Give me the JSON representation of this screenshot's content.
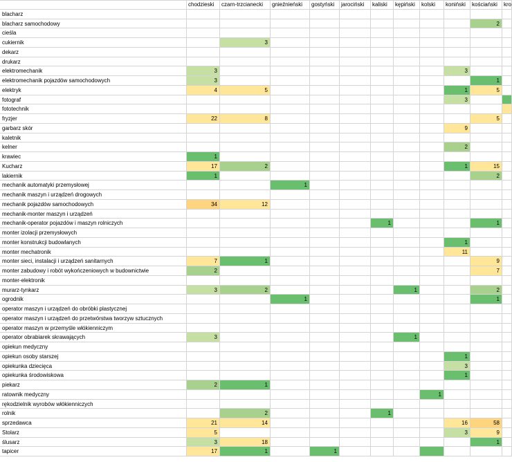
{
  "columns": [
    "chodzieski",
    "czarn-trzcianecki",
    "gnieźnieński",
    "gostyński",
    "jarociński",
    "kaliski",
    "kępiński",
    "kolski",
    "koniński",
    "kościański",
    "kro"
  ],
  "colors": {
    "yellow": "#ffe699",
    "orange": "#ffd47f",
    "light_green": "#c6e0a4",
    "mid_green": "#a9d18e",
    "green": "#6abf6e",
    "grid": "#d4d4d4"
  },
  "rows": [
    {
      "label": "blacharz",
      "cells": []
    },
    {
      "label": "blacharz samochodowy",
      "cells": [
        {
          "c": 9,
          "v": "2",
          "color": "mid_green"
        }
      ]
    },
    {
      "label": "cieśla",
      "cells": []
    },
    {
      "label": "cukiernik",
      "cells": [
        {
          "c": 1,
          "v": "3",
          "color": "light_green"
        }
      ]
    },
    {
      "label": "dekarz",
      "cells": []
    },
    {
      "label": "drukarz",
      "cells": []
    },
    {
      "label": "elektromechanik",
      "cells": [
        {
          "c": 0,
          "v": "3",
          "color": "light_green"
        },
        {
          "c": 8,
          "v": "3",
          "color": "light_green"
        }
      ]
    },
    {
      "label": "elektromechanik pojazdów samochodowych",
      "cells": [
        {
          "c": 0,
          "v": "3",
          "color": "light_green"
        },
        {
          "c": 9,
          "v": "1",
          "color": "green"
        }
      ]
    },
    {
      "label": "elektryk",
      "cells": [
        {
          "c": 0,
          "v": "4",
          "color": "yellow"
        },
        {
          "c": 1,
          "v": "5",
          "color": "yellow"
        },
        {
          "c": 8,
          "v": "1",
          "color": "green"
        },
        {
          "c": 9,
          "v": "5",
          "color": "yellow"
        }
      ]
    },
    {
      "label": "fotograf",
      "cells": [
        {
          "c": 8,
          "v": "3",
          "color": "light_green"
        },
        {
          "c": 10,
          "v": "",
          "color": "green"
        }
      ]
    },
    {
      "label": "fototechnik",
      "cells": [
        {
          "c": 10,
          "v": "",
          "color": "yellow"
        }
      ]
    },
    {
      "label": "fryzjer",
      "cells": [
        {
          "c": 0,
          "v": "22",
          "color": "yellow"
        },
        {
          "c": 1,
          "v": "8",
          "color": "yellow"
        },
        {
          "c": 9,
          "v": "5",
          "color": "yellow"
        }
      ]
    },
    {
      "label": "garbarz skór",
      "cells": [
        {
          "c": 8,
          "v": "9",
          "color": "yellow"
        }
      ]
    },
    {
      "label": "kaletnik",
      "cells": []
    },
    {
      "label": "kelner",
      "cells": [
        {
          "c": 8,
          "v": "2",
          "color": "mid_green"
        }
      ]
    },
    {
      "label": "krawiec",
      "cells": [
        {
          "c": 0,
          "v": "1",
          "color": "green"
        }
      ]
    },
    {
      "label": "Kucharz",
      "cells": [
        {
          "c": 0,
          "v": "17",
          "color": "yellow"
        },
        {
          "c": 1,
          "v": "2",
          "color": "mid_green"
        },
        {
          "c": 8,
          "v": "1",
          "color": "green"
        },
        {
          "c": 9,
          "v": "15",
          "color": "yellow"
        }
      ]
    },
    {
      "label": "lakiernik",
      "cells": [
        {
          "c": 0,
          "v": "1",
          "color": "green"
        },
        {
          "c": 9,
          "v": "2",
          "color": "mid_green"
        }
      ]
    },
    {
      "label": "mechanik automatyki przemysłowej",
      "cells": [
        {
          "c": 2,
          "v": "1",
          "color": "green"
        }
      ]
    },
    {
      "label": "mechanik maszyn i urządzeń drogowych",
      "cells": []
    },
    {
      "label": "mechanik pojazdów samochodowych",
      "cells": [
        {
          "c": 0,
          "v": "34",
          "color": "orange"
        },
        {
          "c": 1,
          "v": "12",
          "color": "yellow"
        }
      ]
    },
    {
      "label": "mechanik-monter maszyn i urządzeń",
      "cells": []
    },
    {
      "label": "mechanik-operator pojazdów i maszyn rolniczych",
      "cells": [
        {
          "c": 5,
          "v": "1",
          "color": "green"
        },
        {
          "c": 9,
          "v": "1",
          "color": "green"
        }
      ]
    },
    {
      "label": "monter izolacji przemysłowych",
      "cells": []
    },
    {
      "label": "monter konstrukcji budowlanych",
      "cells": [
        {
          "c": 8,
          "v": "1",
          "color": "green"
        }
      ]
    },
    {
      "label": "monter mechatronik",
      "cells": [
        {
          "c": 8,
          "v": "11",
          "color": "yellow"
        }
      ]
    },
    {
      "label": "monter sieci, instalacji i urządzeń sanitarnych",
      "cells": [
        {
          "c": 0,
          "v": "7",
          "color": "yellow"
        },
        {
          "c": 1,
          "v": "1",
          "color": "green"
        },
        {
          "c": 9,
          "v": "9",
          "color": "yellow"
        }
      ]
    },
    {
      "label": "monter zabudowy i robót wykończeniowych w budownictwie",
      "cells": [
        {
          "c": 0,
          "v": "2",
          "color": "mid_green"
        },
        {
          "c": 9,
          "v": "7",
          "color": "yellow"
        }
      ]
    },
    {
      "label": "monter-elektronik",
      "cells": []
    },
    {
      "label": "murarz-tynkarz",
      "cells": [
        {
          "c": 0,
          "v": "3",
          "color": "light_green"
        },
        {
          "c": 1,
          "v": "2",
          "color": "mid_green"
        },
        {
          "c": 6,
          "v": "1",
          "color": "green"
        },
        {
          "c": 9,
          "v": "2",
          "color": "mid_green"
        }
      ]
    },
    {
      "label": "ogrodnik",
      "cells": [
        {
          "c": 2,
          "v": "1",
          "color": "green"
        },
        {
          "c": 9,
          "v": "1",
          "color": "green"
        }
      ]
    },
    {
      "label": "operator maszyn i urządzeń do obróbki plastycznej",
      "cells": []
    },
    {
      "label": "operator maszyn i urządzeń do przetwórstwa tworzyw sztucznych",
      "cells": []
    },
    {
      "label": "operator maszyn w przemyśle włókienniczym",
      "cells": []
    },
    {
      "label": "operator obrabiarek skrawających",
      "cells": [
        {
          "c": 0,
          "v": "3",
          "color": "light_green"
        },
        {
          "c": 6,
          "v": "1",
          "color": "green"
        }
      ]
    },
    {
      "label": "opiekun medyczny",
      "cells": []
    },
    {
      "label": "opiekun osoby starszej",
      "cells": [
        {
          "c": 8,
          "v": "1",
          "color": "green"
        }
      ]
    },
    {
      "label": "opiekunka dziecięca",
      "cells": [
        {
          "c": 8,
          "v": "3",
          "color": "light_green"
        }
      ]
    },
    {
      "label": "opiekunka środowiskowa",
      "cells": [
        {
          "c": 8,
          "v": "1",
          "color": "green"
        }
      ]
    },
    {
      "label": "piekarz",
      "cells": [
        {
          "c": 0,
          "v": "2",
          "color": "mid_green"
        },
        {
          "c": 1,
          "v": "1",
          "color": "green"
        }
      ]
    },
    {
      "label": "ratownik medyczny",
      "cells": [
        {
          "c": 7,
          "v": "1",
          "color": "green"
        }
      ]
    },
    {
      "label": "rękodzielnik wyrobów włókienniczych",
      "cells": []
    },
    {
      "label": "rolnik",
      "cells": [
        {
          "c": 1,
          "v": "2",
          "color": "mid_green"
        },
        {
          "c": 5,
          "v": "1",
          "color": "green"
        }
      ]
    },
    {
      "label": "sprzedawca",
      "cells": [
        {
          "c": 0,
          "v": "21",
          "color": "yellow"
        },
        {
          "c": 1,
          "v": "14",
          "color": "yellow"
        },
        {
          "c": 8,
          "v": "16",
          "color": "yellow"
        },
        {
          "c": 9,
          "v": "58",
          "color": "orange"
        }
      ]
    },
    {
      "label": "Stolarz",
      "cells": [
        {
          "c": 0,
          "v": "5",
          "color": "yellow"
        },
        {
          "c": 8,
          "v": "3",
          "color": "light_green"
        },
        {
          "c": 9,
          "v": "9",
          "color": "yellow"
        }
      ]
    },
    {
      "label": "ślusarz",
      "cells": [
        {
          "c": 0,
          "v": "3",
          "color": "light_green"
        },
        {
          "c": 1,
          "v": "18",
          "color": "yellow"
        },
        {
          "c": 9,
          "v": "1",
          "color": "green"
        }
      ]
    },
    {
      "label": "tapicer",
      "cells": [
        {
          "c": 0,
          "v": "17",
          "color": "yellow"
        },
        {
          "c": 1,
          "v": "1",
          "color": "green"
        },
        {
          "c": 3,
          "v": "1",
          "color": "green"
        },
        {
          "c": 7,
          "v": "",
          "color": "green"
        }
      ]
    }
  ]
}
